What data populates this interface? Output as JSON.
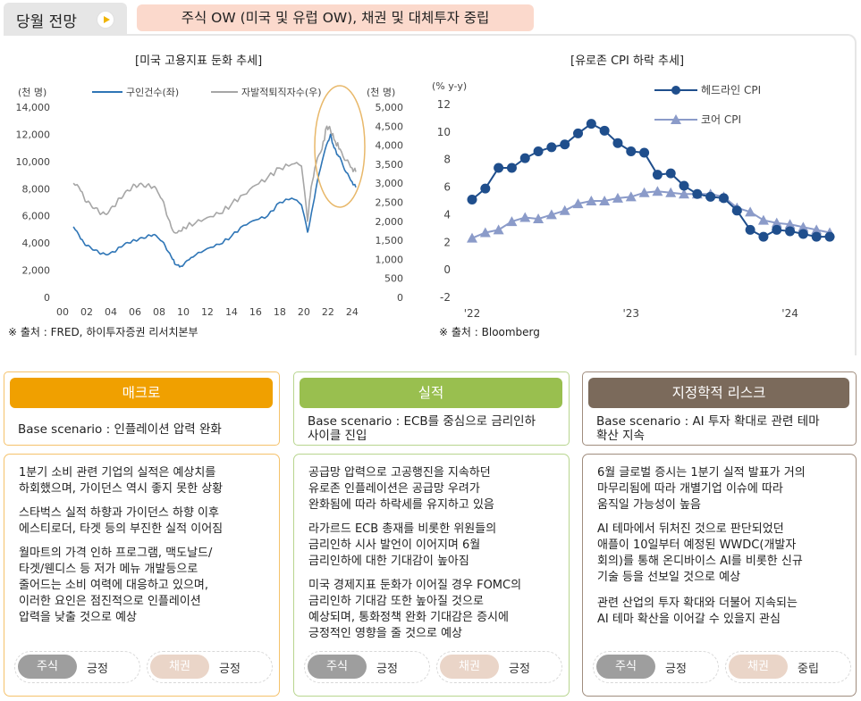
{
  "header": {
    "tab_title": "당월 전망",
    "play_icon": "play-icon",
    "headline": "주식 OW (미국 및 유럽 OW), 채권 및 대체투자 중립",
    "headline_bg": "#fbd9cc"
  },
  "chart_left": {
    "title": "[미국 고용지표 둔화 추세]",
    "source": "※ 출처 : FRED, 하이투자증권 리서치본부",
    "left_unit": "(천 명)",
    "right_unit": "(천 명)",
    "legend": [
      "구인건수(좌)",
      "자발적퇴직자수(우)"
    ],
    "y_left_ticks": [
      "14,000",
      "12,000",
      "10,000",
      "8,000",
      "6,000",
      "4,000",
      "2,000",
      "0"
    ],
    "y_right_ticks": [
      "5,000",
      "4,500",
      "4,000",
      "3,500",
      "3,000",
      "2,500",
      "2,000",
      "1,500",
      "1,000",
      "500",
      "0"
    ],
    "x_ticks": [
      "00",
      "02",
      "04",
      "06",
      "08",
      "10",
      "12",
      "14",
      "16",
      "18",
      "20",
      "22",
      "24"
    ]
  },
  "chart_right": {
    "title": "[유로존 CPI 하락 추세]",
    "source": "※ 출처 : Bloomberg",
    "unit": "(% y-y)",
    "legend": [
      "헤드라인 CPI",
      "코어 CPI"
    ],
    "y_ticks": [
      "12",
      "10",
      "8",
      "6",
      "4",
      "2",
      "0",
      "-2"
    ],
    "x_ticks": [
      "'22",
      "'23",
      "'24"
    ]
  },
  "chart_data": [
    {
      "type": "line",
      "title": "[미국 고용지표 둔화 추세]",
      "xlabel": "",
      "ylabel": "(천 명)",
      "x_range": [
        2000,
        2024.6
      ],
      "ylim_left": [
        0,
        14000
      ],
      "ylim_right": [
        0,
        5000
      ],
      "series": [
        {
          "name": "구인건수(좌)",
          "axis": "left",
          "color": "#2e75b6",
          "points": [
            [
              2000.9,
              5200
            ],
            [
              2001.5,
              4300
            ],
            [
              2002,
              3800
            ],
            [
              2002.5,
              3500
            ],
            [
              2003,
              3300
            ],
            [
              2003.5,
              3200
            ],
            [
              2004,
              3300
            ],
            [
              2004.5,
              3500
            ],
            [
              2005,
              3800
            ],
            [
              2005.5,
              4000
            ],
            [
              2006,
              4200
            ],
            [
              2006.5,
              4400
            ],
            [
              2007,
              4500
            ],
            [
              2007.5,
              4600
            ],
            [
              2008,
              4300
            ],
            [
              2008.5,
              3800
            ],
            [
              2009,
              3000
            ],
            [
              2009.4,
              2400
            ],
            [
              2009.8,
              2300
            ],
            [
              2010.3,
              2700
            ],
            [
              2011,
              3100
            ],
            [
              2012,
              3600
            ],
            [
              2013,
              3900
            ],
            [
              2014,
              4500
            ],
            [
              2015,
              5300
            ],
            [
              2016,
              5700
            ],
            [
              2017,
              6000
            ],
            [
              2018,
              7000
            ],
            [
              2019,
              7300
            ],
            [
              2019.8,
              6800
            ],
            [
              2020.3,
              4800
            ],
            [
              2020.5,
              5600
            ],
            [
              2021,
              8000
            ],
            [
              2021.5,
              10000
            ],
            [
              2022,
              11500
            ],
            [
              2022.2,
              12000
            ],
            [
              2022.5,
              11000
            ],
            [
              2022.8,
              10500
            ],
            [
              2023,
              10300
            ],
            [
              2023.5,
              9200
            ],
            [
              2024,
              8500
            ],
            [
              2024.3,
              8100
            ]
          ]
        },
        {
          "name": "자발적퇴직자수(우)",
          "axis": "right",
          "color": "#a6a6a6",
          "points": [
            [
              2000.9,
              3000
            ],
            [
              2001.5,
              2800
            ],
            [
              2002,
              2500
            ],
            [
              2002.5,
              2350
            ],
            [
              2003,
              2250
            ],
            [
              2003.5,
              2200
            ],
            [
              2004,
              2350
            ],
            [
              2004.5,
              2500
            ],
            [
              2005,
              2650
            ],
            [
              2005.5,
              2800
            ],
            [
              2006,
              2950
            ],
            [
              2006.5,
              3000
            ],
            [
              2007,
              2950
            ],
            [
              2007.5,
              2900
            ],
            [
              2008,
              2700
            ],
            [
              2008.5,
              2350
            ],
            [
              2009,
              1850
            ],
            [
              2009.5,
              1700
            ],
            [
              2010,
              1850
            ],
            [
              2011,
              1950
            ],
            [
              2012,
              2100
            ],
            [
              2013,
              2200
            ],
            [
              2014,
              2450
            ],
            [
              2015,
              2700
            ],
            [
              2016,
              2950
            ],
            [
              2017,
              3150
            ],
            [
              2018,
              3400
            ],
            [
              2019,
              3500
            ],
            [
              2019.8,
              3450
            ],
            [
              2020.3,
              2000
            ],
            [
              2020.6,
              2900
            ],
            [
              2021,
              3500
            ],
            [
              2021.5,
              3900
            ],
            [
              2021.9,
              4500
            ],
            [
              2022.2,
              4400
            ],
            [
              2022.6,
              4100
            ],
            [
              2023,
              3900
            ],
            [
              2023.5,
              3600
            ],
            [
              2024,
              3400
            ],
            [
              2024.3,
              3300
            ]
          ]
        }
      ]
    },
    {
      "type": "line",
      "title": "[유로존 CPI 하락 추세]",
      "xlabel": "",
      "ylabel": "(% y-y)",
      "ylim": [
        -2,
        12
      ],
      "x_range": [
        0,
        28
      ],
      "series": [
        {
          "name": "헤드라인 CPI",
          "color": "#1f4e8c",
          "marker": "circle",
          "values": [
            5.1,
            5.9,
            7.4,
            7.4,
            8.1,
            8.6,
            8.9,
            9.1,
            9.9,
            10.6,
            10.1,
            9.2,
            8.6,
            8.5,
            6.9,
            7.0,
            6.1,
            5.5,
            5.3,
            5.2,
            4.3,
            2.9,
            2.4,
            2.9,
            2.8,
            2.6,
            2.4,
            2.4
          ]
        },
        {
          "name": "코어 CPI",
          "color": "#8b9bc9",
          "marker": "triangle",
          "values": [
            2.3,
            2.7,
            2.9,
            3.5,
            3.8,
            3.7,
            4.0,
            4.3,
            4.8,
            5.0,
            5.0,
            5.2,
            5.3,
            5.6,
            5.7,
            5.6,
            5.5,
            5.5,
            5.5,
            5.3,
            4.5,
            4.2,
            3.6,
            3.4,
            3.3,
            3.1,
            2.9,
            2.7
          ]
        }
      ]
    }
  ],
  "sections": [
    {
      "heading": "매크로",
      "color": "#f0a000",
      "border": "#f5c26b",
      "base": "Base scenario : 인플레이션 압력 완화",
      "paragraphs": [
        [
          "1분기 소비 관련 기업의 실적은 예상치를",
          "하회했으며, 가이던스 역시 좋지 못한 상황"
        ],
        [
          "스타벅스 실적 하향과 가이던스 하향 이후",
          "에스티로더, 타겟 등의 부진한 실적 이어짐"
        ],
        [
          "월마트의 가격 인하 프로그램, 맥도날드/",
          "타겟/웬디스 등 저가 메뉴 개발등으로",
          "줄어드는 소비 여력에 대응하고 있으며,",
          "이러한 요인은 점진적으로 인플레이션",
          "압력을 낮출 것으로 예상"
        ]
      ],
      "ratings": [
        {
          "label": "주식",
          "value": "긍정",
          "color": "#9e9e9e"
        },
        {
          "label": "채권",
          "value": "긍정",
          "color": "#ead5c8"
        }
      ]
    },
    {
      "heading": "실적",
      "color": "#99bf4f",
      "border": "#b8d58f",
      "base": [
        "Base scenario : ECB를 중심으로 금리인하",
        "사이클 진입"
      ],
      "paragraphs": [
        [
          "공급망 압력으로 고공행진을 지속하던",
          "유로존 인플레이션은 공급망 우려가",
          "완화됨에 따라 하락세를 유지하고 있음"
        ],
        [
          "라가르드 ECB 총재를 비롯한 위원들의",
          "금리인하 시사 발언이 이어지며 6월",
          "금리인하에 대한 기대감이 높아짐"
        ],
        [
          "미국 경제지표 둔화가 이어질 경우 FOMC의",
          "금리인하 기대감 또한 높아질 것으로",
          "예상되며, 통화정책 완화 기대감은 증시에",
          "긍정적인 영향을 줄 것으로 예상"
        ]
      ],
      "ratings": [
        {
          "label": "주식",
          "value": "긍정",
          "color": "#9e9e9e"
        },
        {
          "label": "채권",
          "value": "긍정",
          "color": "#ead5c8"
        }
      ]
    },
    {
      "heading": "지정학적 리스크",
      "color": "#7b6a5b",
      "border": "#a08d7e",
      "base": [
        "Base scenario : AI 투자 확대로 관련 테마",
        "확산 지속"
      ],
      "paragraphs": [
        [
          "6월 글로벌 증시는 1분기 실적 발표가 거의",
          "마무리됨에 따라 개별기업 이슈에 따라",
          "움직일 가능성이 높음"
        ],
        [
          "AI 테마에서 뒤처진 것으로 판단되었던",
          "애플이 10일부터 예정된 WWDC(개발자",
          "회의)를 통해 온디바이스 AI를 비롯한 신규",
          "기술 등을 선보일 것으로 예상"
        ],
        [
          "관련 산업의 투자 확대와 더불어 지속되는",
          "AI 테마 확산을 이어갈 수 있을지 관심"
        ]
      ],
      "ratings": [
        {
          "label": "주식",
          "value": "긍정",
          "color": "#9e9e9e"
        },
        {
          "label": "채권",
          "value": "중립",
          "color": "#ead5c8"
        }
      ]
    }
  ]
}
